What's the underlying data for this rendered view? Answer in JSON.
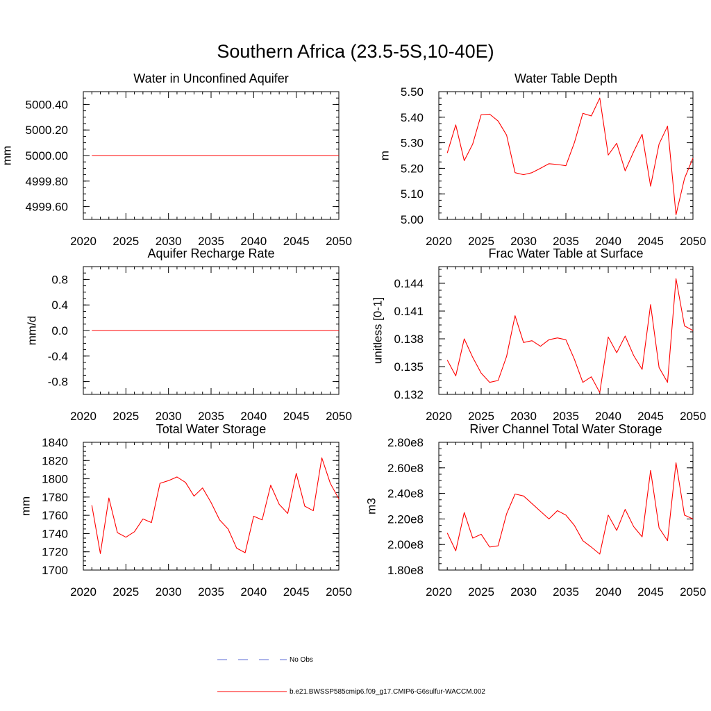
{
  "figure": {
    "title": "Southern Africa (23.5-5S,10-40E)"
  },
  "legend": {
    "items": [
      {
        "label": "No Obs",
        "color": "#5b6bd6",
        "style": "dashed"
      },
      {
        "label": "b.e21.BWSSP585cmip6.f09_g17.CMIP6-G6sulfur-WACCM.002",
        "color": "#ff0000",
        "style": "solid"
      }
    ]
  },
  "chart_data": [
    {
      "type": "line",
      "title": "Water in Unconfined Aquifer",
      "ylabel": "mm",
      "xlim": [
        2020,
        2050
      ],
      "ylim": [
        4999.5,
        5000.5
      ],
      "xticks": [
        "2020",
        "2025",
        "2030",
        "2035",
        "2040",
        "2045",
        "2050"
      ],
      "yticks": [
        {
          "v": 4999.6,
          "label": "4999.60"
        },
        {
          "v": 4999.8,
          "label": "4999.80"
        },
        {
          "v": 5000.0,
          "label": "5000.00"
        },
        {
          "v": 5000.2,
          "label": "5000.20"
        },
        {
          "v": 5000.4,
          "label": "5000.40"
        }
      ],
      "x": [
        2021,
        2022,
        2023,
        2024,
        2025,
        2026,
        2027,
        2028,
        2029,
        2030,
        2031,
        2032,
        2033,
        2034,
        2035,
        2036,
        2037,
        2038,
        2039,
        2040,
        2041,
        2042,
        2043,
        2044,
        2045,
        2046,
        2047,
        2048,
        2049,
        2050
      ],
      "series": [
        {
          "color": "#ff0000",
          "values": [
            5000,
            5000,
            5000,
            5000,
            5000,
            5000,
            5000,
            5000,
            5000,
            5000,
            5000,
            5000,
            5000,
            5000,
            5000,
            5000,
            5000,
            5000,
            5000,
            5000,
            5000,
            5000,
            5000,
            5000,
            5000,
            5000,
            5000,
            5000,
            5000,
            5000
          ]
        }
      ]
    },
    {
      "type": "line",
      "title": "Water Table Depth",
      "ylabel": "m",
      "xlim": [
        2020,
        2050
      ],
      "ylim": [
        5.0,
        5.5
      ],
      "xticks": [
        "2020",
        "2025",
        "2030",
        "2035",
        "2040",
        "2045",
        "2050"
      ],
      "yticks": [
        {
          "v": 5.0,
          "label": "5.00"
        },
        {
          "v": 5.1,
          "label": "5.10"
        },
        {
          "v": 5.2,
          "label": "5.20"
        },
        {
          "v": 5.3,
          "label": "5.30"
        },
        {
          "v": 5.4,
          "label": "5.40"
        },
        {
          "v": 5.5,
          "label": "5.50"
        }
      ],
      "x": [
        2021,
        2022,
        2023,
        2024,
        2025,
        2026,
        2027,
        2028,
        2029,
        2030,
        2031,
        2032,
        2033,
        2034,
        2035,
        2036,
        2037,
        2038,
        2039,
        2040,
        2041,
        2042,
        2043,
        2044,
        2045,
        2046,
        2047,
        2048,
        2049,
        2050
      ],
      "series": [
        {
          "color": "#ff0000",
          "values": [
            5.26,
            5.37,
            5.23,
            5.295,
            5.41,
            5.412,
            5.385,
            5.33,
            5.183,
            5.175,
            5.183,
            5.2,
            5.218,
            5.215,
            5.21,
            5.3,
            5.415,
            5.405,
            5.475,
            5.252,
            5.298,
            5.19,
            5.265,
            5.333,
            5.13,
            5.295,
            5.365,
            5.018,
            5.16,
            5.24
          ]
        }
      ]
    },
    {
      "type": "line",
      "title": "Aquifer Recharge Rate",
      "ylabel": "mm/d",
      "xlim": [
        2020,
        2050
      ],
      "ylim": [
        -1.0,
        1.0
      ],
      "xticks": [
        "2020",
        "2025",
        "2030",
        "2035",
        "2040",
        "2045",
        "2050"
      ],
      "yticks": [
        {
          "v": -0.8,
          "label": "-0.8"
        },
        {
          "v": -0.4,
          "label": "-0.4"
        },
        {
          "v": 0.0,
          "label": "0.0"
        },
        {
          "v": 0.4,
          "label": "0.4"
        },
        {
          "v": 0.8,
          "label": "0.8"
        }
      ],
      "x": [
        2021,
        2022,
        2023,
        2024,
        2025,
        2026,
        2027,
        2028,
        2029,
        2030,
        2031,
        2032,
        2033,
        2034,
        2035,
        2036,
        2037,
        2038,
        2039,
        2040,
        2041,
        2042,
        2043,
        2044,
        2045,
        2046,
        2047,
        2048,
        2049,
        2050
      ],
      "series": [
        {
          "color": "#ff0000",
          "values": [
            0,
            0,
            0,
            0,
            0,
            0,
            0,
            0,
            0,
            0,
            0,
            0,
            0,
            0,
            0,
            0,
            0,
            0,
            0,
            0,
            0,
            0,
            0,
            0,
            0,
            0,
            0,
            0,
            0,
            0
          ]
        }
      ]
    },
    {
      "type": "line",
      "title": "Frac Water Table at Surface",
      "ylabel": "unitless [0-1]",
      "xlim": [
        2020,
        2050
      ],
      "ylim": [
        0.132,
        0.1458
      ],
      "xticks": [
        "2020",
        "2025",
        "2030",
        "2035",
        "2040",
        "2045",
        "2050"
      ],
      "yticks": [
        {
          "v": 0.132,
          "label": "0.132"
        },
        {
          "v": 0.135,
          "label": "0.135"
        },
        {
          "v": 0.138,
          "label": "0.138"
        },
        {
          "v": 0.141,
          "label": "0.141"
        },
        {
          "v": 0.144,
          "label": "0.144"
        }
      ],
      "x": [
        2021,
        2022,
        2023,
        2024,
        2025,
        2026,
        2027,
        2028,
        2029,
        2030,
        2031,
        2032,
        2033,
        2034,
        2035,
        2036,
        2037,
        2038,
        2039,
        2040,
        2041,
        2042,
        2043,
        2044,
        2045,
        2046,
        2047,
        2048,
        2049,
        2050
      ],
      "series": [
        {
          "color": "#ff0000",
          "values": [
            0.1357,
            0.134,
            0.138,
            0.136,
            0.1343,
            0.1333,
            0.1335,
            0.1361,
            0.1405,
            0.1376,
            0.1378,
            0.1372,
            0.1379,
            0.1381,
            0.1379,
            0.1358,
            0.1333,
            0.1339,
            0.1322,
            0.1382,
            0.1365,
            0.1383,
            0.1362,
            0.1347,
            0.1417,
            0.1349,
            0.1333,
            0.1445,
            0.1394,
            0.1389
          ]
        }
      ]
    },
    {
      "type": "line",
      "title": "Total Water Storage",
      "ylabel": "mm",
      "xlim": [
        2020,
        2050
      ],
      "ylim": [
        1700,
        1840
      ],
      "xticks": [
        "2020",
        "2025",
        "2030",
        "2035",
        "2040",
        "2045",
        "2050"
      ],
      "yticks": [
        {
          "v": 1700,
          "label": "1700"
        },
        {
          "v": 1720,
          "label": "1720"
        },
        {
          "v": 1740,
          "label": "1740"
        },
        {
          "v": 1760,
          "label": "1760"
        },
        {
          "v": 1780,
          "label": "1780"
        },
        {
          "v": 1800,
          "label": "1800"
        },
        {
          "v": 1820,
          "label": "1820"
        },
        {
          "v": 1840,
          "label": "1840"
        }
      ],
      "x": [
        2021,
        2022,
        2023,
        2024,
        2025,
        2026,
        2027,
        2028,
        2029,
        2030,
        2031,
        2032,
        2033,
        2034,
        2035,
        2036,
        2037,
        2038,
        2039,
        2040,
        2041,
        2042,
        2043,
        2044,
        2045,
        2046,
        2047,
        2048,
        2049,
        2050
      ],
      "series": [
        {
          "color": "#ff0000",
          "values": [
            1771,
            1718,
            1779,
            1741,
            1736,
            1742,
            1756,
            1752,
            1795,
            1798,
            1802,
            1796,
            1781,
            1790,
            1774,
            1755,
            1745,
            1724,
            1719,
            1759,
            1755,
            1793,
            1772,
            1762,
            1806,
            1770,
            1765,
            1823,
            1795,
            1778
          ]
        }
      ]
    },
    {
      "type": "line",
      "title": "River Channel Total Water Storage",
      "ylabel": "m3",
      "xlim": [
        2020,
        2050
      ],
      "ylim": [
        180000000,
        280000000
      ],
      "xticks": [
        "2020",
        "2025",
        "2030",
        "2035",
        "2040",
        "2045",
        "2050"
      ],
      "yticks": [
        {
          "v": 180000000,
          "label": "1.80e8"
        },
        {
          "v": 200000000,
          "label": "2.00e8"
        },
        {
          "v": 220000000,
          "label": "2.20e8"
        },
        {
          "v": 240000000,
          "label": "2.40e8"
        },
        {
          "v": 260000000,
          "label": "2.60e8"
        },
        {
          "v": 280000000,
          "label": "2.80e8"
        }
      ],
      "x": [
        2021,
        2022,
        2023,
        2024,
        2025,
        2026,
        2027,
        2028,
        2029,
        2030,
        2031,
        2032,
        2033,
        2034,
        2035,
        2036,
        2037,
        2038,
        2039,
        2040,
        2041,
        2042,
        2043,
        2044,
        2045,
        2046,
        2047,
        2048,
        2049,
        2050
      ],
      "series": [
        {
          "color": "#ff0000",
          "values": [
            209000000,
            195000000,
            225000000,
            205000000,
            208000000,
            198000000,
            199000000,
            224000000,
            239500000,
            238000000,
            232000000,
            226000000,
            220000000,
            226500000,
            223000000,
            215000000,
            203000000,
            198000000,
            192500000,
            223000000,
            211000000,
            227500000,
            214000000,
            206000000,
            258000000,
            213000000,
            203000000,
            264000000,
            223000000,
            220000000
          ]
        }
      ]
    }
  ]
}
